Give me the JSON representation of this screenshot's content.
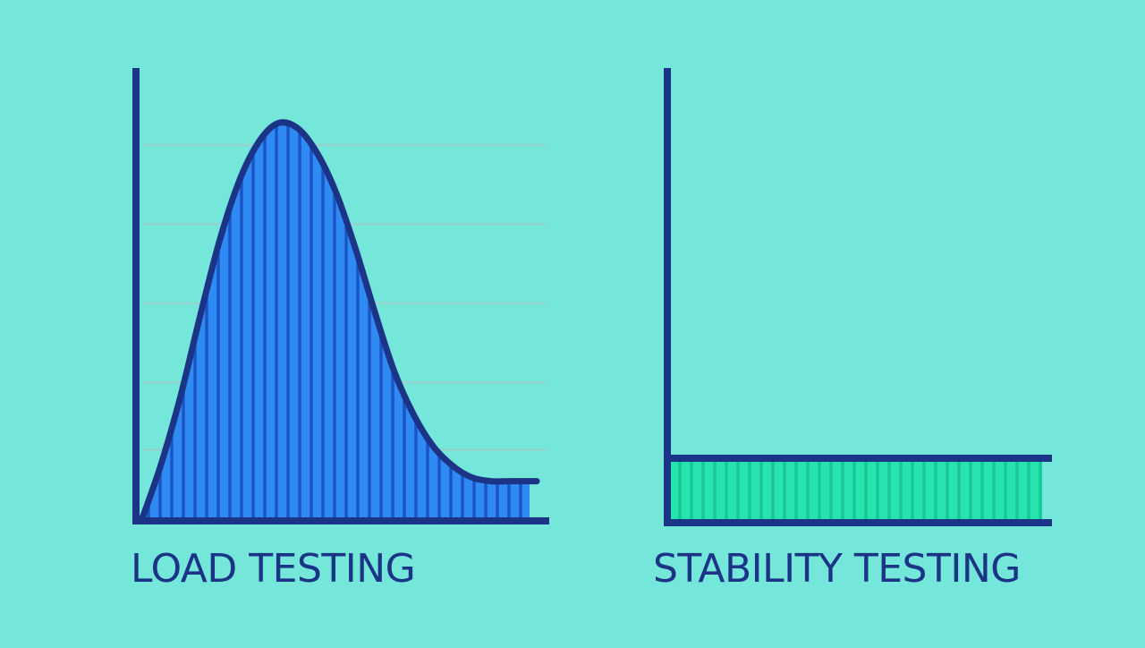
{
  "colors": {
    "background": "#74e6da",
    "axis": "#1c3486",
    "load_fill": "#2f8bf3",
    "load_stripe": "#1a55c6",
    "stability_fill": "#27e3ae",
    "stability_stripe": "#18c79a",
    "gridline": "#8fd5cf"
  },
  "chart_data": [
    {
      "type": "area",
      "title": "LOAD TESTING",
      "shape": "bell curve, rises to a single peak then falls to a low tail",
      "x": [
        0,
        0.05,
        0.1,
        0.15,
        0.2,
        0.25,
        0.3,
        0.35,
        0.4,
        0.45,
        0.5,
        0.55,
        0.6,
        0.65,
        0.7,
        0.75,
        0.8,
        0.85,
        0.9,
        0.95,
        1.0
      ],
      "values": [
        0.0,
        0.14,
        0.31,
        0.51,
        0.7,
        0.85,
        0.95,
        1.0,
        0.99,
        0.93,
        0.83,
        0.69,
        0.53,
        0.38,
        0.27,
        0.19,
        0.14,
        0.11,
        0.1,
        0.1,
        0.1
      ],
      "ylim": [
        0,
        1.25
      ],
      "grid": true,
      "gridlines": [
        0.18,
        0.35,
        0.55,
        0.75,
        0.95
      ]
    },
    {
      "type": "area",
      "title": "STABILITY TESTING",
      "shape": "flat constant band",
      "x": [
        0,
        1.0
      ],
      "values": [
        0.14,
        0.14
      ],
      "ylim": [
        0,
        1.1
      ],
      "grid": false
    }
  ]
}
